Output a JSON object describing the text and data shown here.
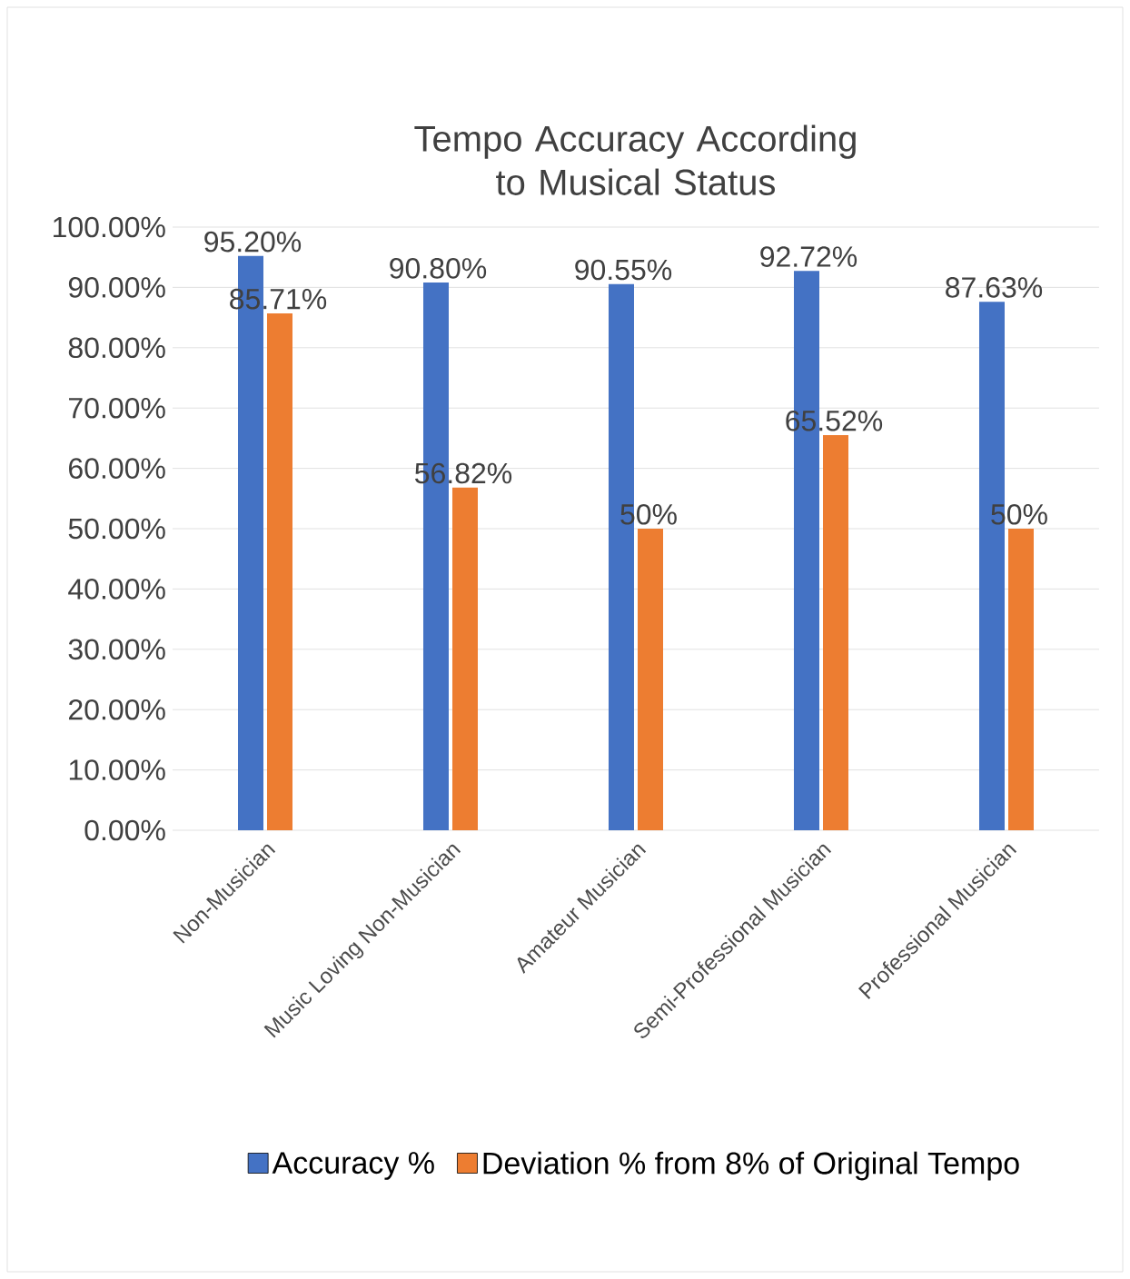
{
  "chart_data": {
    "type": "bar",
    "title": "Tempo Accuracy According to Musical Status",
    "categories": [
      "Non-Musician",
      "Music Loving Non-Musician",
      "Amateur Musician",
      "Semi-Professional Musician",
      "Professional Musician"
    ],
    "series": [
      {
        "name": "Accuracy %",
        "color": "#4472c4",
        "values": [
          95.2,
          90.8,
          90.55,
          92.72,
          87.63
        ],
        "value_labels": [
          "95.20%",
          "90.80%",
          "90.55%",
          "92.72%",
          "87.63%"
        ]
      },
      {
        "name": "Deviation % from 8% of Original Tempo",
        "color": "#ed7d31",
        "values": [
          85.71,
          56.82,
          50,
          65.52,
          50
        ],
        "value_labels": [
          "85.71%",
          "56.82%",
          "50%",
          "65.52%",
          "50%"
        ]
      }
    ],
    "ylim": [
      0,
      100
    ],
    "yticks": [
      {
        "value": 0,
        "label": "0.00%"
      },
      {
        "value": 10,
        "label": "10.00%"
      },
      {
        "value": 20,
        "label": "20.00%"
      },
      {
        "value": 30,
        "label": "30.00%"
      },
      {
        "value": 40,
        "label": "40.00%"
      },
      {
        "value": 50,
        "label": "50.00%"
      },
      {
        "value": 60,
        "label": "60.00%"
      },
      {
        "value": 70,
        "label": "70.00%"
      },
      {
        "value": 80,
        "label": "80.00%"
      },
      {
        "value": 90,
        "label": "90.00%"
      },
      {
        "value": 100,
        "label": "100.00%"
      }
    ],
    "grid": "y",
    "legend": "bottom"
  }
}
